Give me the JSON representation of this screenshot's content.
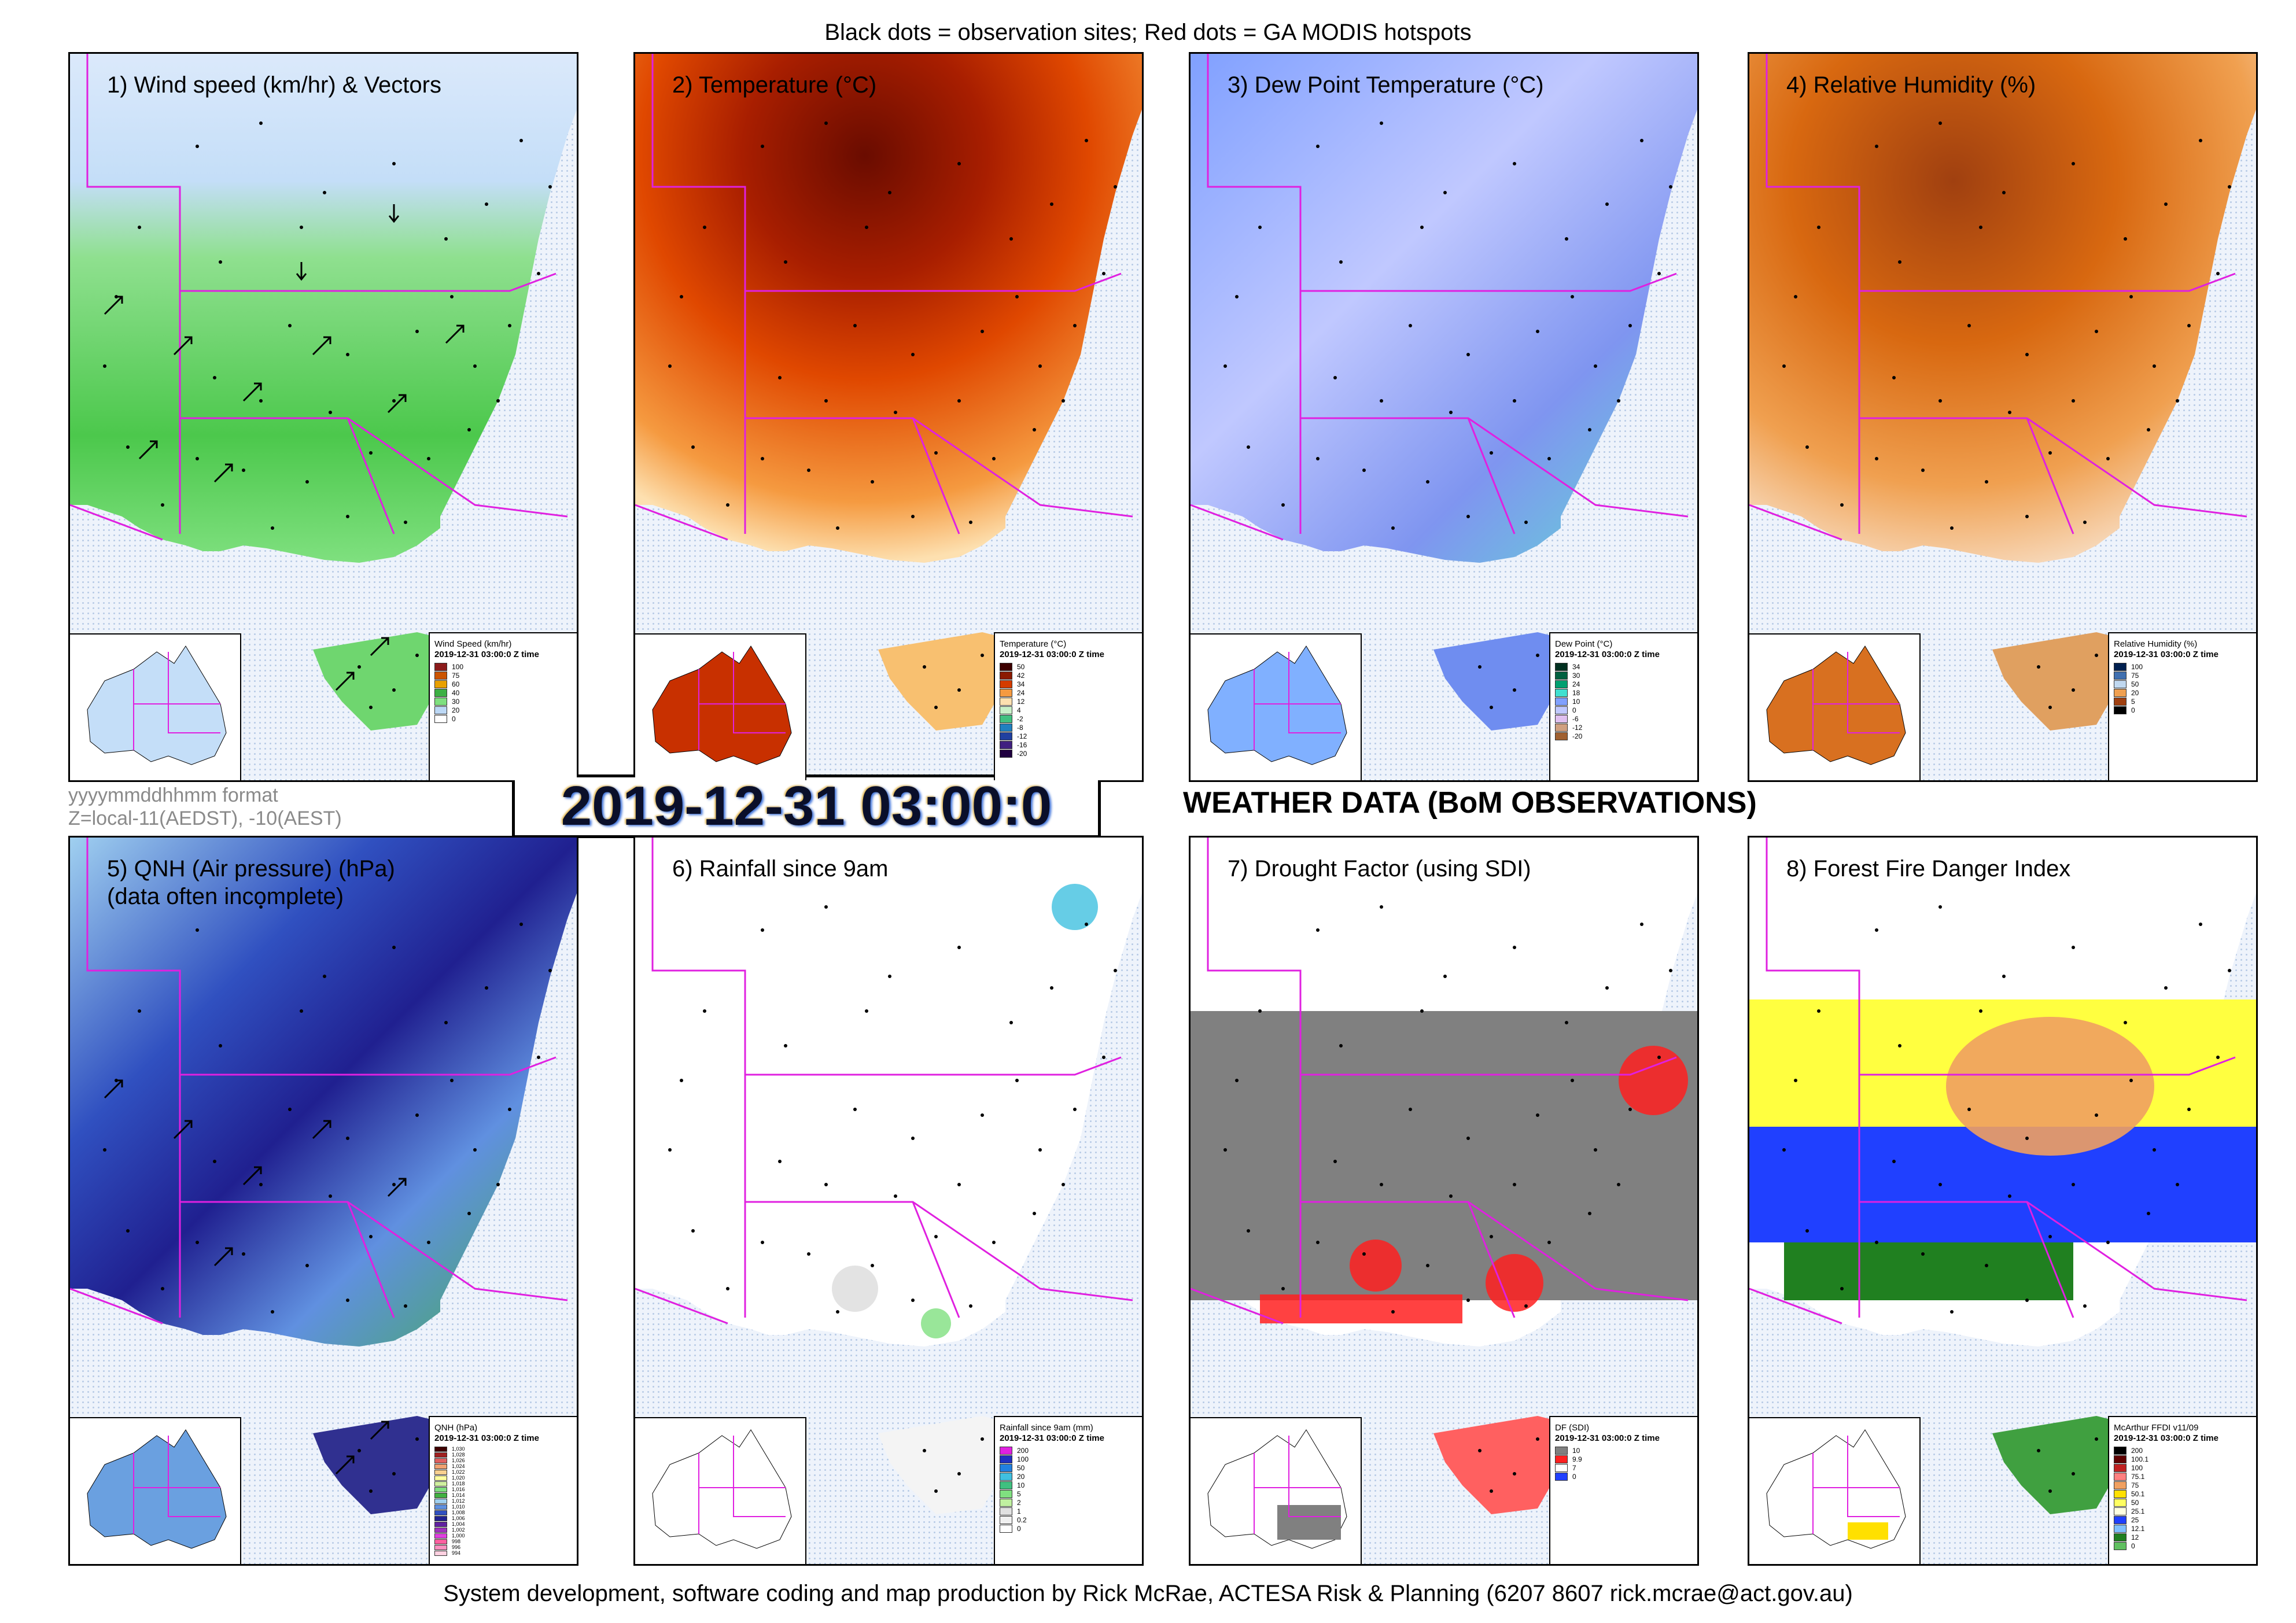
{
  "header_note": "Black dots = observation sites; Red dots = GA MODIS hotspots",
  "credit": "System development, software coding and map production by Rick McRae, ACTESA Risk & Planning (6207 8607 rick.mcrae@act.gov.au)",
  "timestamp": "2019-12-31 03:00:0",
  "main_title": "WEATHER DATA (BoM OBSERVATIONS)",
  "format_note": {
    "line1": "yyyymmddhhmm format",
    "line2": "Z=local-11(AEDST), -10(AEST)"
  },
  "colors": {
    "boundary": "#e020e0",
    "frame": "#000000",
    "ocean_dots": "#b8cbe6"
  },
  "panels": [
    {
      "title": "1) Wind speed (km/hr) & Vectors",
      "legend": {
        "title": "Wind Speed (km/hr)",
        "time": "2019-12-31 03:00:0 Z time",
        "entries": [
          {
            "label": "100",
            "color": "#8b1a1a"
          },
          {
            "label": "75",
            "color": "#cc5500"
          },
          {
            "label": "60",
            "color": "#e8a000"
          },
          {
            "label": "40",
            "color": "#3cb043"
          },
          {
            "label": "30",
            "color": "#7fe07f"
          },
          {
            "label": "20",
            "color": "#bcd8f5"
          },
          {
            "label": "0",
            "color": "#ffffff"
          }
        ]
      }
    },
    {
      "title": "2) Temperature (°C)",
      "legend": {
        "title": "Temperature (°C)",
        "time": "2019-12-31 03:00:0 Z time",
        "entries": [
          {
            "label": "50",
            "color": "#3d0000"
          },
          {
            "label": "42",
            "color": "#8b1a00"
          },
          {
            "label": "34",
            "color": "#d43c00"
          },
          {
            "label": "24",
            "color": "#f59a40"
          },
          {
            "label": "12",
            "color": "#fde0b0"
          },
          {
            "label": "4",
            "color": "#c8f0c8"
          },
          {
            "label": "-2",
            "color": "#40c080"
          },
          {
            "label": "-8",
            "color": "#2080c0"
          },
          {
            "label": "-12",
            "color": "#2040a0"
          },
          {
            "label": "-16",
            "color": "#402080"
          },
          {
            "label": "-20",
            "color": "#200040"
          }
        ]
      }
    },
    {
      "title": "3) Dew Point Temperature (°C)",
      "legend": {
        "title": "Dew Point (°C)",
        "time": "2019-12-31 03:00:0 Z time",
        "entries": [
          {
            "label": "34",
            "color": "#003020"
          },
          {
            "label": "30",
            "color": "#006040"
          },
          {
            "label": "24",
            "color": "#00a070"
          },
          {
            "label": "18",
            "color": "#40e0d0"
          },
          {
            "label": "10",
            "color": "#80a0ff"
          },
          {
            "label": "0",
            "color": "#c0c8ff"
          },
          {
            "label": "-6",
            "color": "#e0c0f0"
          },
          {
            "label": "-12",
            "color": "#d0a080"
          },
          {
            "label": "-20",
            "color": "#a06030"
          }
        ]
      }
    },
    {
      "title": "4) Relative Humidity (%)",
      "legend": {
        "title": "Relative Humidity (%)",
        "time": "2019-12-31 03:00:0 Z time",
        "entries": [
          {
            "label": "100",
            "color": "#002050"
          },
          {
            "label": "75",
            "color": "#4070b0"
          },
          {
            "label": "50",
            "color": "#c0d8f0"
          },
          {
            "label": "20",
            "color": "#f0a050"
          },
          {
            "label": "5",
            "color": "#a04010"
          },
          {
            "label": "0",
            "color": "#000000"
          }
        ]
      }
    },
    {
      "title": "5) QNH (Air pressure) (hPa)\n(data often incomplete)",
      "legend": {
        "title": "QNH (hPa)",
        "time": "2019-12-31 03:00:0 Z time",
        "entries": [
          {
            "label": "1,030",
            "color": "#400000"
          },
          {
            "label": "1,028",
            "color": "#a02020"
          },
          {
            "label": "1,026",
            "color": "#e06060"
          },
          {
            "label": "1,024",
            "color": "#f0a070"
          },
          {
            "label": "1,022",
            "color": "#f8d090"
          },
          {
            "label": "1,020",
            "color": "#ffffa0"
          },
          {
            "label": "1,018",
            "color": "#d0f0a0"
          },
          {
            "label": "1,016",
            "color": "#80e080"
          },
          {
            "label": "1,014",
            "color": "#40b040"
          },
          {
            "label": "1,012",
            "color": "#a0d0f0"
          },
          {
            "label": "1,010",
            "color": "#6090e0"
          },
          {
            "label": "1,008",
            "color": "#3050c0"
          },
          {
            "label": "1,006",
            "color": "#202090"
          },
          {
            "label": "1,004",
            "color": "#6020a0"
          },
          {
            "label": "1,002",
            "color": "#a030c0"
          },
          {
            "label": "1,000",
            "color": "#e040e0"
          },
          {
            "label": "998",
            "color": "#ff60a0"
          },
          {
            "label": "996",
            "color": "#ff90c0"
          },
          {
            "label": "994",
            "color": "#ffd0e0"
          }
        ]
      }
    },
    {
      "title": "6) Rainfall since 9am",
      "legend": {
        "title": "Rainfall since 9am (mm)",
        "time": "2019-12-31 03:00:0 Z time",
        "entries": [
          {
            "label": "200",
            "color": "#e020e0"
          },
          {
            "label": "100",
            "color": "#2030c0"
          },
          {
            "label": "50",
            "color": "#2080e0"
          },
          {
            "label": "20",
            "color": "#40c0e0"
          },
          {
            "label": "10",
            "color": "#40c080"
          },
          {
            "label": "5",
            "color": "#80e080"
          },
          {
            "label": "2",
            "color": "#c0f0a0"
          },
          {
            "label": "1",
            "color": "#e0e0e0"
          },
          {
            "label": "0.2",
            "color": "#f0f0f0"
          },
          {
            "label": "0",
            "color": "#ffffff"
          }
        ]
      }
    },
    {
      "title": "7) Drought Factor (using SDI)",
      "legend": {
        "title": "DF (SDI)",
        "time": "2019-12-31 03:00:0 Z time",
        "entries": [
          {
            "label": "10",
            "color": "#808080"
          },
          {
            "label": "9.9",
            "color": "#ff2020"
          },
          {
            "label": "7",
            "color": "#ffffff"
          },
          {
            "label": "0",
            "color": "#2040ff"
          }
        ]
      }
    },
    {
      "title": "8) Forest Fire Danger Index",
      "legend": {
        "title": "McArthur FFDI v11/09",
        "time": "2019-12-31 03:00:0 Z time",
        "entries": [
          {
            "label": "200",
            "color": "#000000"
          },
          {
            "label": "100.1",
            "color": "#600000"
          },
          {
            "label": "100",
            "color": "#c02020"
          },
          {
            "label": "75.1",
            "color": "#ff8080"
          },
          {
            "label": "75",
            "color": "#f0a060"
          },
          {
            "label": "50.1",
            "color": "#ffe000"
          },
          {
            "label": "50",
            "color": "#ffff60"
          },
          {
            "label": "25.1",
            "color": "#ffffe0"
          },
          {
            "label": "25",
            "color": "#2040ff"
          },
          {
            "label": "12.1",
            "color": "#80c0ff"
          },
          {
            "label": "12",
            "color": "#208020"
          },
          {
            "label": "0",
            "color": "#60c060"
          }
        ]
      }
    }
  ]
}
